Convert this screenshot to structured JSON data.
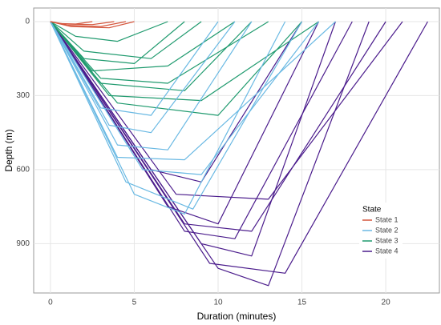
{
  "chart_data": {
    "type": "line",
    "x_label": "Duration (minutes)",
    "y_label": "Depth (m)",
    "xlim": [
      -1,
      23.2
    ],
    "xticks": [
      0,
      5,
      10,
      15,
      20
    ],
    "ylim": [
      -55,
      1100
    ],
    "yticks": [
      0,
      300,
      600,
      900
    ],
    "y_inverted": true,
    "grid": true,
    "legend_title": "State",
    "legend": "right",
    "series": [
      {
        "name": "State 1",
        "color": "#d4553c",
        "dives": [
          {
            "x": [
              0,
              1,
              3,
              4.5
            ],
            "values": [
              0,
              15,
              20,
              0
            ]
          },
          {
            "x": [
              0,
              0.8,
              2.5,
              3.8
            ],
            "values": [
              0,
              10,
              12,
              0
            ]
          },
          {
            "x": [
              0,
              1.2,
              3.5,
              5
            ],
            "values": [
              0,
              20,
              25,
              0
            ]
          },
          {
            "x": [
              0,
              0.5,
              1.5,
              2.5
            ],
            "values": [
              0,
              8,
              10,
              0
            ]
          }
        ]
      },
      {
        "name": "State 2",
        "color": "#6ab9e3",
        "dives": [
          {
            "x": [
              0,
              4,
              7,
              12
            ],
            "values": [
              0,
              500,
              520,
              0
            ]
          },
          {
            "x": [
              0,
              5,
              8,
              14
            ],
            "values": [
              0,
              700,
              780,
              0
            ]
          },
          {
            "x": [
              0,
              4.5,
              8.5,
              15
            ],
            "values": [
              0,
              650,
              760,
              0
            ]
          },
          {
            "x": [
              0,
              3.5,
              6,
              11
            ],
            "values": [
              0,
              420,
              450,
              0
            ]
          },
          {
            "x": [
              0,
              5.5,
              9,
              16
            ],
            "values": [
              0,
              600,
              620,
              0
            ]
          },
          {
            "x": [
              0,
              4,
              8,
              17
            ],
            "values": [
              0,
              550,
              560,
              0
            ]
          },
          {
            "x": [
              0,
              3,
              6,
              10
            ],
            "values": [
              0,
              350,
              380,
              0
            ]
          }
        ]
      },
      {
        "name": "State 3",
        "color": "#1f9a6e",
        "dives": [
          {
            "x": [
              0,
              2,
              6,
              9
            ],
            "values": [
              0,
              120,
              150,
              0
            ]
          },
          {
            "x": [
              0,
              3,
              8,
              12
            ],
            "values": [
              0,
              250,
              280,
              0
            ]
          },
          {
            "x": [
              0,
              4,
              10,
              15
            ],
            "values": [
              0,
              330,
              380,
              0
            ]
          },
          {
            "x": [
              0,
              2.5,
              7,
              11
            ],
            "values": [
              0,
              200,
              180,
              0
            ]
          },
          {
            "x": [
              0,
              1.5,
              4,
              7
            ],
            "values": [
              0,
              60,
              80,
              0
            ]
          },
          {
            "x": [
              0,
              3.5,
              9,
              16
            ],
            "values": [
              0,
              300,
              320,
              0
            ]
          },
          {
            "x": [
              0,
              2,
              5,
              8
            ],
            "values": [
              0,
              150,
              170,
              0
            ]
          },
          {
            "x": [
              0,
              3,
              7,
              13
            ],
            "values": [
              0,
              230,
              250,
              0
            ]
          }
        ]
      },
      {
        "name": "State 4",
        "color": "#4b1c8c",
        "dives": [
          {
            "x": [
              0,
              9,
              12,
              17
            ],
            "values": [
              0,
              900,
              950,
              0
            ]
          },
          {
            "x": [
              0,
              10,
              13,
              19
            ],
            "values": [
              0,
              1000,
              1070,
              0
            ]
          },
          {
            "x": [
              0,
              8,
              11,
              18
            ],
            "values": [
              0,
              850,
              880,
              0
            ]
          },
          {
            "x": [
              0,
              7,
              10,
              16
            ],
            "values": [
              0,
              750,
              820,
              0
            ]
          },
          {
            "x": [
              0,
              9.5,
              14,
              22.5
            ],
            "values": [
              0,
              980,
              1020,
              0
            ]
          },
          {
            "x": [
              0,
              6,
              9,
              15
            ],
            "values": [
              0,
              600,
              650,
              0
            ]
          },
          {
            "x": [
              0,
              8,
              12,
              20
            ],
            "values": [
              0,
              820,
              850,
              0
            ]
          },
          {
            "x": [
              0,
              7.5,
              13,
              21
            ],
            "values": [
              0,
              700,
              720,
              0
            ]
          }
        ]
      }
    ]
  }
}
